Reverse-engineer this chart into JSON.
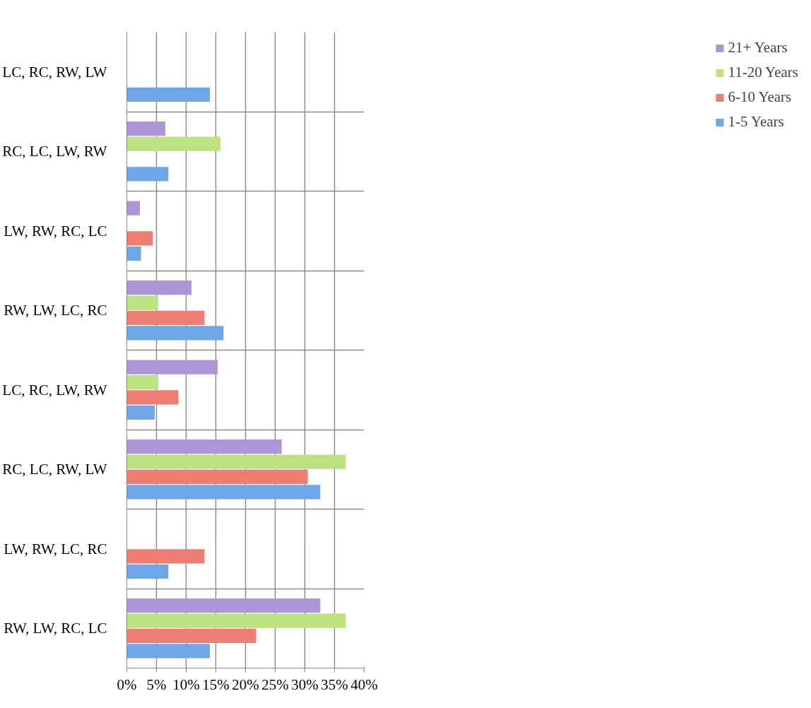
{
  "chart_data": {
    "type": "bar",
    "orientation": "horizontal",
    "categories": [
      "LC, RC, RW, LW",
      "RC, LC, LW, RW",
      "LW, RW, RC, LC",
      "RW, LW, LC, RC",
      "LC, RC, LW, RW",
      "RC, LC, RW, LW",
      "LW, RW, LC, RC",
      "RW, LW, RC, LC"
    ],
    "series": [
      {
        "name": "1-5 Years",
        "color": "#6ea6e8",
        "values": [
          14.0,
          7.0,
          2.4,
          16.3,
          4.7,
          32.6,
          7.0,
          14.0
        ]
      },
      {
        "name": "6-10 Years",
        "color": "#ee7d74",
        "values": [
          null,
          null,
          4.4,
          13.1,
          8.7,
          30.5,
          13.1,
          21.8
        ]
      },
      {
        "name": "11-20 Years",
        "color": "#bde281",
        "values": [
          null,
          15.8,
          null,
          5.3,
          5.3,
          36.9,
          null,
          36.9
        ]
      },
      {
        "name": "21+ Years",
        "color": "#ad95d8",
        "values": [
          null,
          6.5,
          2.2,
          10.9,
          15.3,
          26.1,
          null,
          32.6
        ]
      }
    ],
    "xlim": [
      0,
      40
    ],
    "xticks": [
      {
        "value": 0,
        "label": "0%"
      },
      {
        "value": 5,
        "label": "5%"
      },
      {
        "value": 10,
        "label": "10%"
      },
      {
        "value": 15,
        "label": "15%"
      },
      {
        "value": 20,
        "label": "20%"
      },
      {
        "value": 25,
        "label": "25%"
      },
      {
        "value": 30,
        "label": "30%"
      },
      {
        "value": 35,
        "label": "35%"
      },
      {
        "value": 40,
        "label": "40%"
      }
    ],
    "grid": true,
    "legend": "right"
  }
}
